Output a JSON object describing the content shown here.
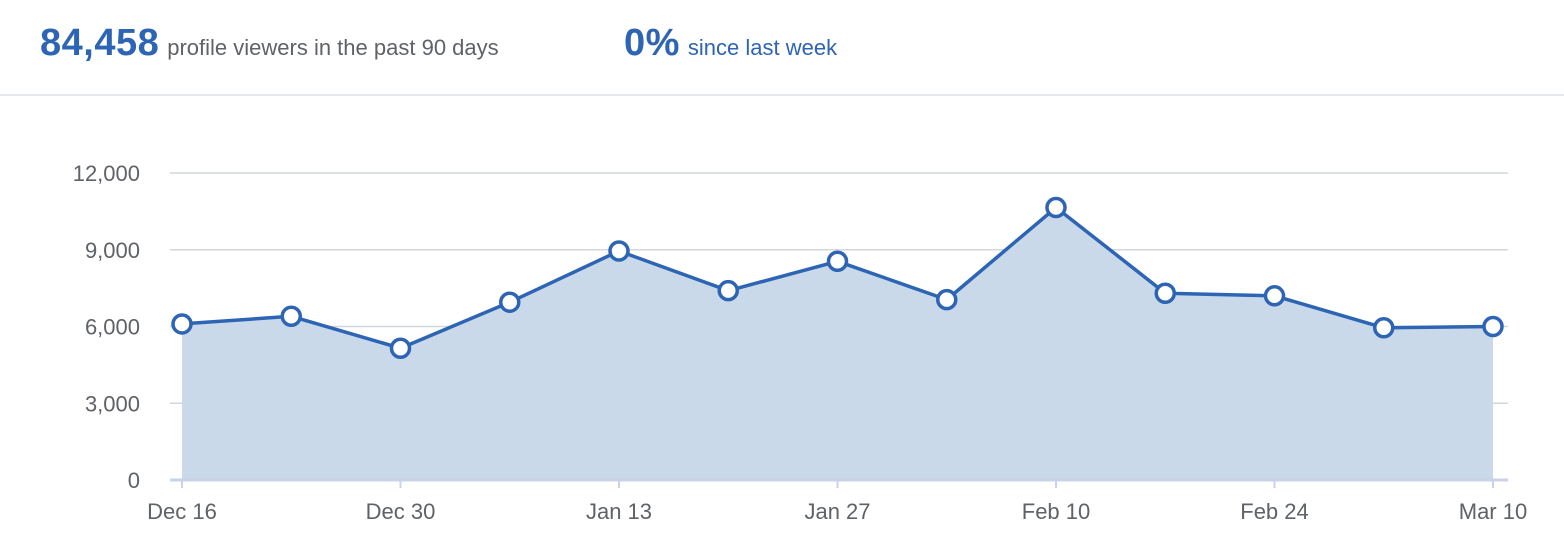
{
  "summary": {
    "viewers_value": "84,458",
    "viewers_label": "profile viewers in the past 90 days",
    "change_value": "0%",
    "change_label": "since last week"
  },
  "colors": {
    "accent": "#2d64b4",
    "area_fill": "#c9d9ea",
    "grid": "#d3d7dc",
    "text_muted": "#5f6266"
  },
  "chart_data": {
    "type": "area",
    "x": [
      "Dec 16",
      "Dec 23",
      "Dec 30",
      "Jan 6",
      "Jan 13",
      "Jan 20",
      "Jan 27",
      "Feb 3",
      "Feb 10",
      "Feb 17",
      "Feb 24",
      "Mar 3",
      "Mar 10"
    ],
    "x_tick_labels": [
      "Dec 16",
      "Dec 30",
      "Jan 13",
      "Jan 27",
      "Feb 10",
      "Feb 24",
      "Mar 10"
    ],
    "values": [
      6100,
      6400,
      5150,
      6950,
      8950,
      7400,
      8550,
      7050,
      10650,
      7300,
      7200,
      5950,
      6000
    ],
    "y_ticks": [
      0,
      3000,
      6000,
      9000,
      12000
    ],
    "y_tick_labels": [
      "0",
      "3,000",
      "6,000",
      "9,000",
      "12,000"
    ],
    "ylim": [
      0,
      12000
    ],
    "grid": true,
    "legend": "none"
  }
}
